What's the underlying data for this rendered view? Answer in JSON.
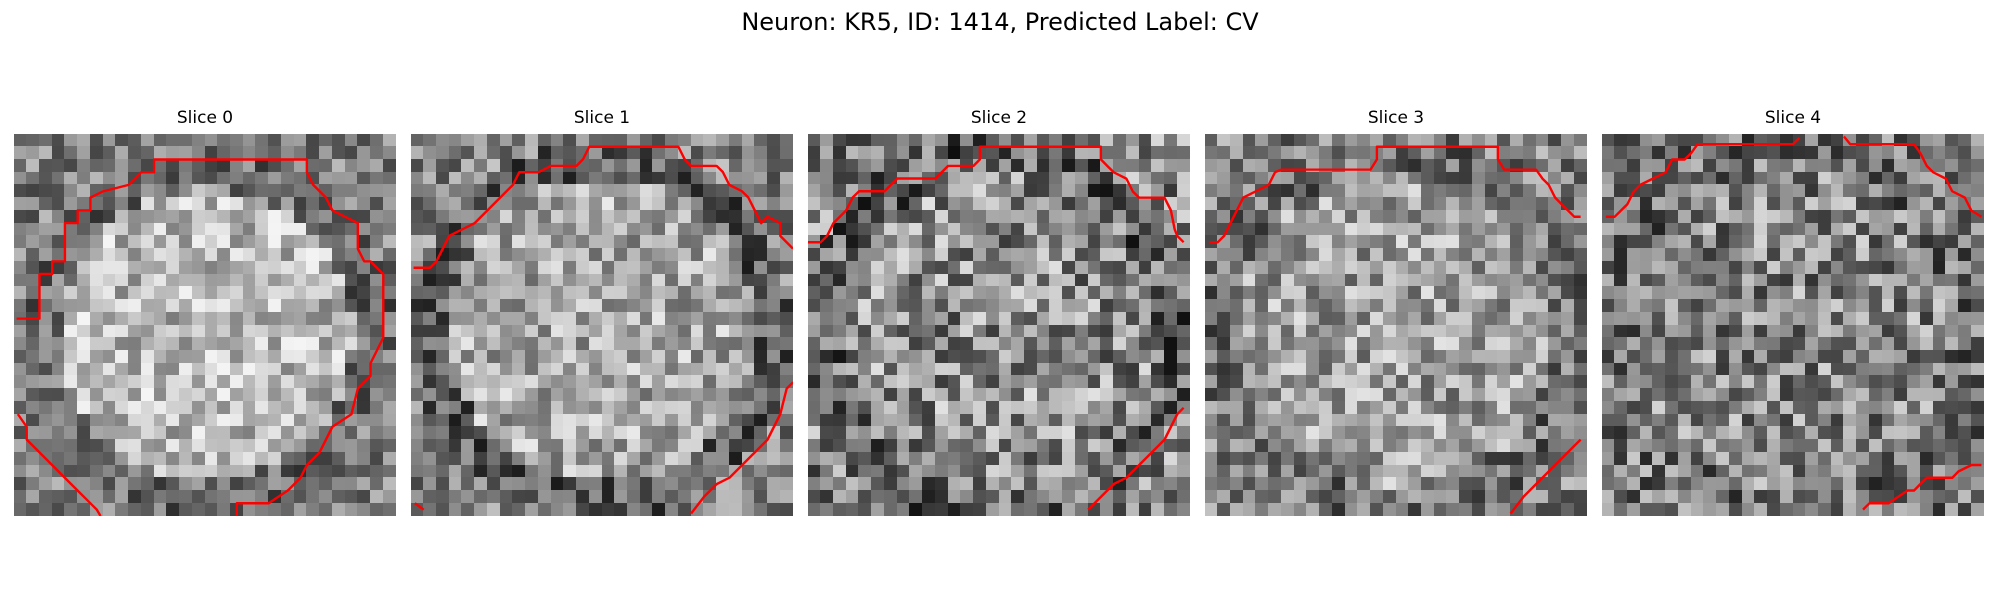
{
  "figure": {
    "title": "Neuron: KR5, ID: 1414, Predicted Label: CV"
  },
  "panels": [
    {
      "label": "Slice 0"
    },
    {
      "label": "Slice 1"
    },
    {
      "label": "Slice 2"
    },
    {
      "label": "Slice 3"
    },
    {
      "label": "Slice 4"
    }
  ],
  "colors": {
    "background": "#ffffff",
    "contour": "#ff0000",
    "colormap": "gray"
  }
}
